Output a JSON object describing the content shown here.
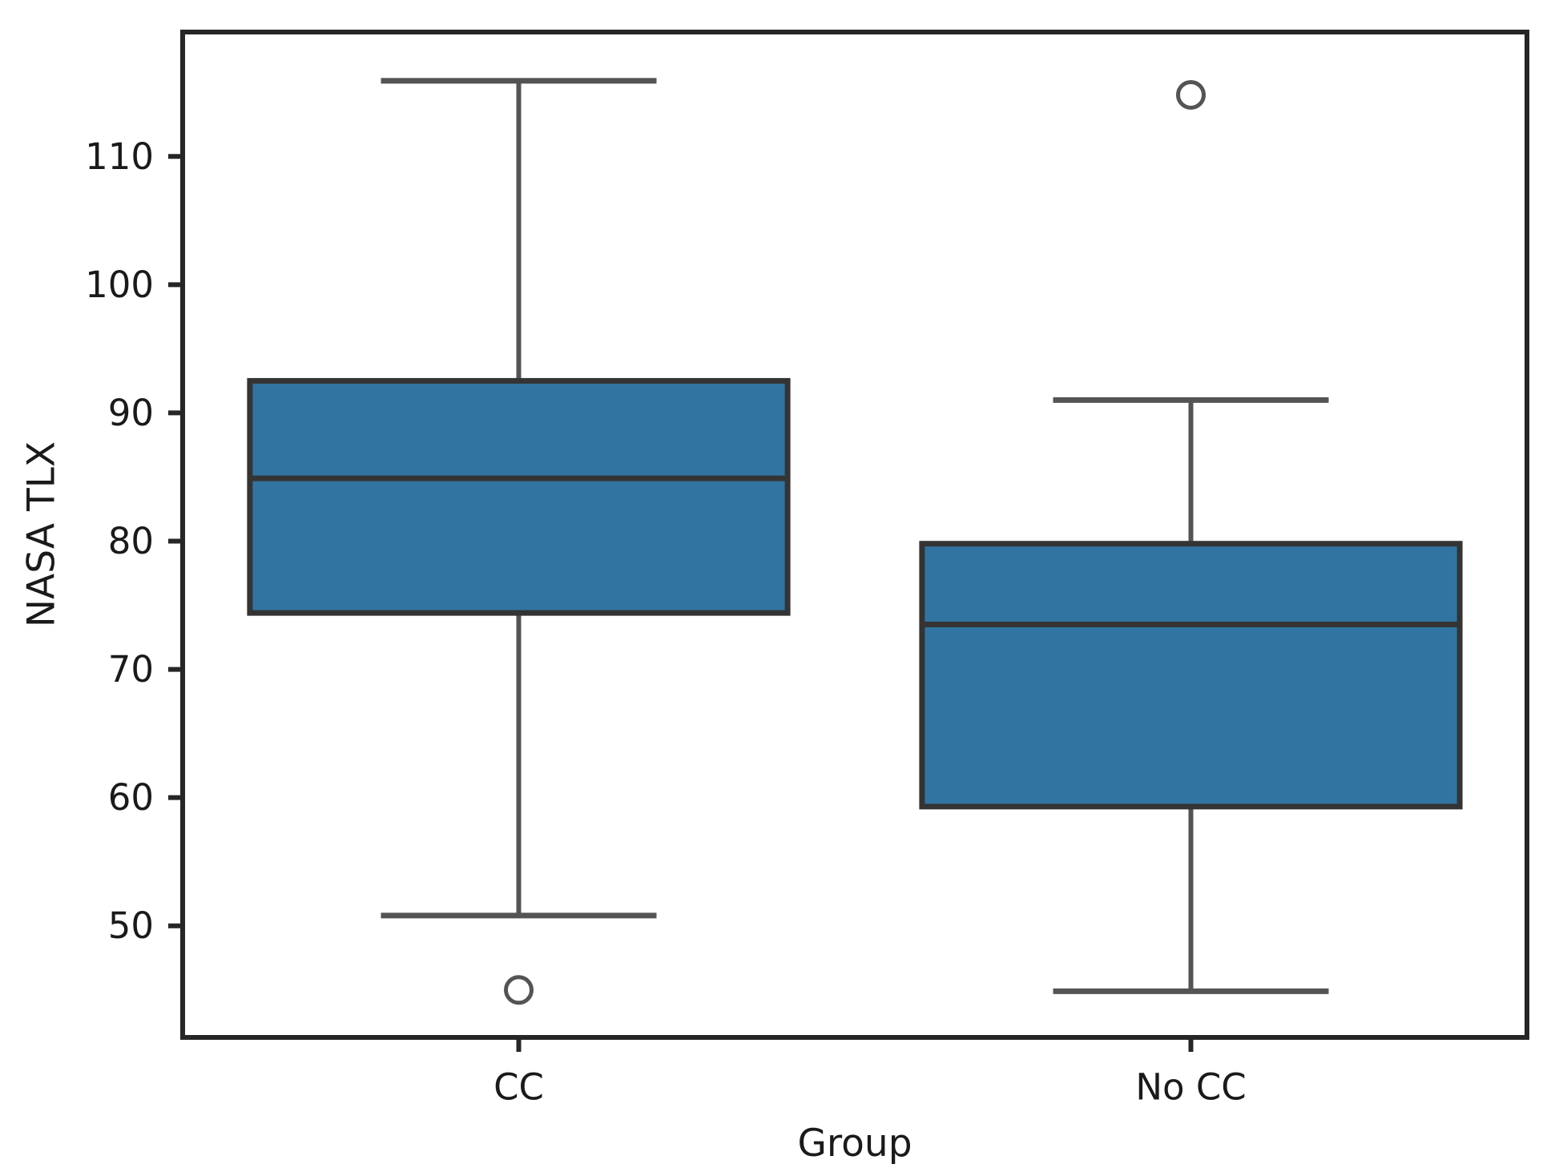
{
  "figure": {
    "background": "#ffffff"
  },
  "chart_data": {
    "type": "box",
    "title": "",
    "xlabel": "Group",
    "ylabel": "NASA TLX",
    "categories": [
      "CC",
      "No CC"
    ],
    "ylim": [
      41.3,
      119.7
    ],
    "yticks": [
      50,
      60,
      70,
      80,
      90,
      100,
      110
    ],
    "ytick_labels": [
      "50",
      "60",
      "70",
      "80",
      "90",
      "100",
      "110"
    ],
    "grid": false,
    "legend": null,
    "boxes": [
      {
        "group": "CC",
        "whisker_low": 50.8,
        "q1": 74.4,
        "median": 84.9,
        "q3": 92.5,
        "whisker_high": 115.9,
        "outliers": [
          45.0
        ]
      },
      {
        "group": "No CC",
        "whisker_low": 44.9,
        "q1": 59.3,
        "median": 73.5,
        "q3": 79.8,
        "whisker_high": 91.0,
        "outliers": [
          114.8
        ]
      }
    ],
    "style": {
      "box_fill": "#3274a1",
      "box_edge": "#343434",
      "median_color": "#343434",
      "whisker_color": "#545454",
      "cap_color": "#545454",
      "flier_edge": "#545454",
      "flier_fill": "#ffffff",
      "spine_color": "#262626",
      "tick_color": "#262626",
      "tick_label_color": "#1a1a1a",
      "box_width_units": 0.8,
      "cap_width_units": 0.41
    }
  }
}
